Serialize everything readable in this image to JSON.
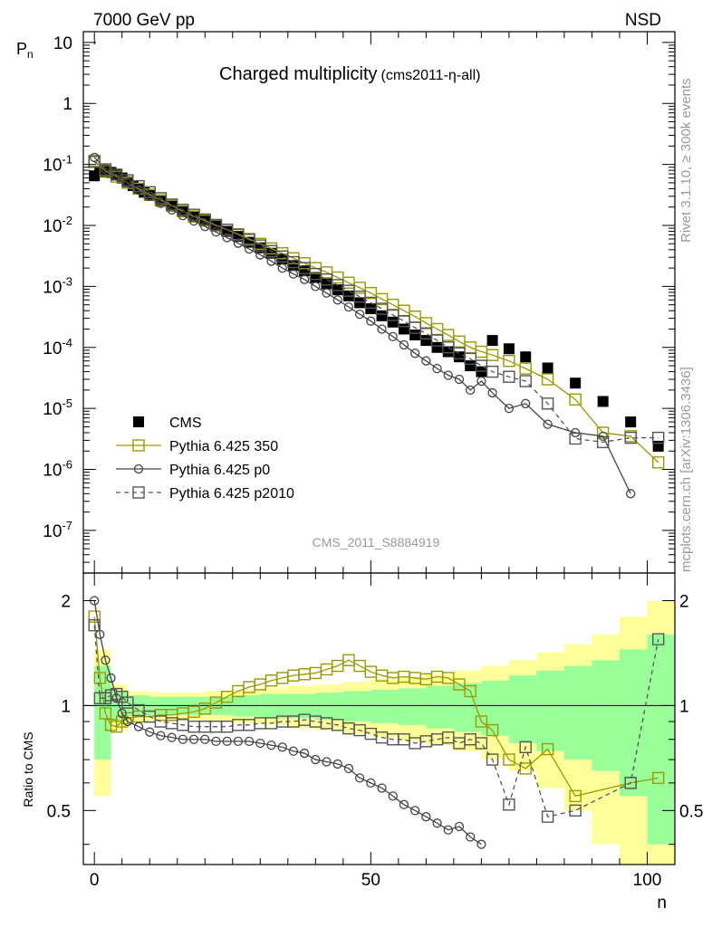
{
  "header": {
    "beam": "7000 GeV pp",
    "process": "NSD",
    "title_main": "Charged multiplicity",
    "title_sub": "(cms2011-η-all)",
    "side_rivet": "Rivet 3.1.10, ≥ 300k events",
    "side_mcplots": "mcplots.cern.ch [arXiv:1306.3436]",
    "analysis_id": "CMS_2011_S8884919"
  },
  "chart_data": [
    {
      "type": "scatter",
      "title": "Charged multiplicity",
      "xlabel": "n",
      "ylabel": "P_n",
      "y_scale": "log",
      "xlim": [
        -2,
        105
      ],
      "ylim": [
        2e-08,
        15
      ],
      "x_ticks": [
        "0",
        "50",
        "100"
      ],
      "y_ticks": [
        "10^-7",
        "10^-6",
        "10^-5",
        "10^-4",
        "10^-3",
        "10^-2",
        "10^-1",
        "1",
        "10"
      ],
      "legend_position": "lower-left",
      "series": [
        {
          "name": "CMS",
          "color": "#000000",
          "marker": "filled-square",
          "x": [
            0,
            1,
            2,
            3,
            4,
            5,
            6,
            7,
            8,
            9,
            10,
            12,
            14,
            16,
            18,
            20,
            22,
            24,
            26,
            28,
            30,
            32,
            34,
            36,
            38,
            40,
            42,
            44,
            46,
            48,
            50,
            52,
            54,
            56,
            58,
            60,
            62,
            64,
            66,
            68,
            70,
            72,
            75,
            78,
            82,
            87,
            92,
            97,
            102
          ],
          "y": [
            0.065,
            0.075,
            0.08,
            0.074,
            0.067,
            0.06,
            0.052,
            0.045,
            0.04,
            0.035,
            0.031,
            0.025,
            0.021,
            0.017,
            0.014,
            0.012,
            0.0098,
            0.008,
            0.0066,
            0.0053,
            0.0043,
            0.0035,
            0.0028,
            0.0022,
            0.0018,
            0.0014,
            0.0011,
            0.00088,
            0.0007,
            0.00054,
            0.00043,
            0.00033,
            0.00026,
            0.0002,
            0.00016,
            0.00013,
            0.0001,
            8.5e-05,
            7e-05,
            5e-05,
            4e-05,
            0.00013,
            9.5e-05,
            7e-05,
            4.6e-05,
            2.6e-05,
            1.3e-05,
            6e-06,
            2.4e-06
          ]
        },
        {
          "name": "Pythia 6.425 350",
          "color": "#999900",
          "marker": "open-square",
          "line": "solid",
          "x": [
            0,
            2,
            4,
            6,
            8,
            10,
            12,
            14,
            16,
            18,
            20,
            22,
            24,
            26,
            28,
            30,
            32,
            34,
            36,
            38,
            40,
            42,
            44,
            46,
            48,
            50,
            52,
            54,
            56,
            58,
            60,
            62,
            64,
            66,
            68,
            70,
            72,
            75,
            78,
            82,
            87,
            92,
            97,
            102
          ],
          "y": [
            0.115,
            0.078,
            0.063,
            0.05,
            0.04,
            0.032,
            0.026,
            0.021,
            0.017,
            0.014,
            0.012,
            0.01,
            0.0085,
            0.0072,
            0.006,
            0.005,
            0.0042,
            0.0035,
            0.0029,
            0.0024,
            0.002,
            0.0017,
            0.0014,
            0.00115,
            0.00095,
            0.00078,
            0.00062,
            0.0005,
            0.0004,
            0.00032,
            0.00025,
            0.0002,
            0.00016,
            0.000125,
            0.0001,
            8.5e-05,
            7.5e-05,
            6e-05,
            4.5e-05,
            3e-05,
            1.4e-05,
            4e-06,
            3.5e-06,
            1.3e-06
          ]
        },
        {
          "name": "Pythia 6.425 p0",
          "color": "#444444",
          "marker": "open-circle",
          "line": "solid",
          "x": [
            0,
            2,
            4,
            6,
            8,
            10,
            12,
            14,
            16,
            18,
            20,
            22,
            24,
            26,
            28,
            30,
            32,
            34,
            36,
            38,
            40,
            42,
            44,
            46,
            48,
            50,
            52,
            54,
            56,
            58,
            60,
            62,
            64,
            66,
            68,
            70,
            72,
            75,
            78,
            82,
            87,
            92,
            97
          ],
          "y": [
            0.13,
            0.085,
            0.065,
            0.05,
            0.038,
            0.03,
            0.023,
            0.018,
            0.0145,
            0.0118,
            0.0096,
            0.0078,
            0.0063,
            0.0051,
            0.0041,
            0.0033,
            0.0026,
            0.002,
            0.0016,
            0.0013,
            0.001,
            0.00078,
            0.0006,
            0.00046,
            0.00035,
            0.00027,
            0.0002,
            0.00015,
            0.00011,
            8e-05,
            6e-05,
            4.5e-05,
            3.5e-05,
            3e-05,
            2e-05,
            2.8e-05,
            1.8e-05,
            1e-05,
            1.2e-05,
            5.5e-06,
            4e-06,
            3.5e-06,
            4e-07
          ]
        },
        {
          "name": "Pythia 6.425 p2010",
          "color": "#555555",
          "marker": "open-square",
          "line": "dashed",
          "x": [
            0,
            2,
            4,
            6,
            8,
            10,
            12,
            14,
            16,
            18,
            20,
            22,
            24,
            26,
            28,
            30,
            32,
            34,
            36,
            38,
            40,
            42,
            44,
            46,
            48,
            50,
            52,
            54,
            56,
            58,
            60,
            62,
            64,
            66,
            68,
            70,
            72,
            75,
            78,
            82,
            87,
            92,
            97,
            102
          ],
          "y": [
            0.11,
            0.083,
            0.068,
            0.055,
            0.044,
            0.035,
            0.028,
            0.022,
            0.018,
            0.015,
            0.0125,
            0.0102,
            0.0085,
            0.007,
            0.0058,
            0.0047,
            0.0038,
            0.0031,
            0.0025,
            0.002,
            0.0016,
            0.0013,
            0.00105,
            0.00085,
            0.00068,
            0.00054,
            0.00043,
            0.00034,
            0.00027,
            0.00021,
            0.00017,
            0.00013,
            0.0001,
            8e-05,
            6.5e-05,
            5e-05,
            4e-05,
            3.3e-05,
            2.8e-05,
            1.2e-05,
            3.2e-06,
            2.8e-06,
            3.3e-06,
            3.3e-06
          ]
        }
      ]
    },
    {
      "type": "scatter",
      "ylabel": "Ratio to CMS",
      "xlabel": "n",
      "y_scale": "log",
      "xlim": [
        -2,
        105
      ],
      "ylim": [
        0.35,
        2.4
      ],
      "reference_line": 1,
      "x_ticks": [
        "0",
        "50",
        "100"
      ],
      "y_ticks": [
        "0.5",
        "1",
        "2"
      ],
      "uncertainty_bands": {
        "inner_color": "#99ff99",
        "outer_color": "#ffff99",
        "x_edges": [
          0,
          3,
          6,
          10,
          15,
          20,
          25,
          30,
          35,
          40,
          45,
          50,
          55,
          60,
          65,
          70,
          75,
          80,
          85,
          90,
          95,
          100,
          105
        ],
        "inner_half_width": [
          0.3,
          0.1,
          0.07,
          0.06,
          0.06,
          0.06,
          0.07,
          0.08,
          0.08,
          0.09,
          0.1,
          0.11,
          0.12,
          0.14,
          0.16,
          0.18,
          0.22,
          0.26,
          0.3,
          0.35,
          0.45,
          0.6
        ],
        "outer_half_width": [
          0.45,
          0.15,
          0.1,
          0.09,
          0.09,
          0.1,
          0.11,
          0.12,
          0.14,
          0.15,
          0.17,
          0.19,
          0.21,
          0.23,
          0.26,
          0.3,
          0.35,
          0.42,
          0.5,
          0.6,
          0.8,
          1.0
        ]
      },
      "series": [
        {
          "name": "Pythia 6.425 350",
          "color": "#999900",
          "marker": "open-square",
          "line": "solid",
          "x": [
            0,
            1,
            2,
            3,
            4,
            5,
            6,
            8,
            10,
            12,
            14,
            16,
            18,
            20,
            22,
            24,
            26,
            28,
            30,
            32,
            34,
            36,
            38,
            40,
            42,
            44,
            46,
            48,
            50,
            52,
            54,
            56,
            58,
            60,
            62,
            64,
            66,
            68,
            70,
            72,
            75,
            78,
            82,
            87,
            97,
            102
          ],
          "y": [
            1.8,
            1.2,
            0.95,
            0.88,
            0.87,
            0.9,
            0.92,
            0.93,
            0.93,
            0.94,
            0.94,
            0.95,
            0.96,
            0.98,
            1.02,
            1.06,
            1.1,
            1.13,
            1.15,
            1.18,
            1.2,
            1.22,
            1.23,
            1.24,
            1.27,
            1.3,
            1.35,
            1.3,
            1.25,
            1.22,
            1.2,
            1.21,
            1.2,
            1.19,
            1.21,
            1.2,
            1.15,
            1.1,
            0.9,
            0.85,
            0.7,
            0.66,
            0.75,
            0.55,
            0.6,
            0.62
          ]
        },
        {
          "name": "Pythia 6.425 p0",
          "color": "#444444",
          "marker": "open-circle",
          "line": "solid",
          "x": [
            0,
            1,
            2,
            3,
            4,
            5,
            6,
            8,
            10,
            12,
            14,
            16,
            18,
            20,
            22,
            24,
            26,
            28,
            30,
            32,
            34,
            36,
            38,
            40,
            42,
            44,
            46,
            48,
            50,
            52,
            54,
            56,
            58,
            60,
            62,
            64,
            66,
            68,
            70
          ],
          "y": [
            2.0,
            1.6,
            1.35,
            1.2,
            1.05,
            0.95,
            0.9,
            0.87,
            0.84,
            0.82,
            0.81,
            0.8,
            0.8,
            0.8,
            0.79,
            0.79,
            0.79,
            0.79,
            0.78,
            0.77,
            0.76,
            0.74,
            0.73,
            0.7,
            0.69,
            0.68,
            0.66,
            0.62,
            0.6,
            0.58,
            0.55,
            0.52,
            0.5,
            0.48,
            0.46,
            0.44,
            0.45,
            0.42,
            0.4
          ]
        },
        {
          "name": "Pythia 6.425 p2010",
          "color": "#555555",
          "marker": "open-square",
          "line": "dashed",
          "x": [
            0,
            1,
            2,
            3,
            4,
            5,
            6,
            8,
            10,
            12,
            14,
            16,
            18,
            20,
            22,
            24,
            26,
            28,
            30,
            32,
            34,
            36,
            38,
            40,
            42,
            44,
            46,
            48,
            50,
            52,
            54,
            56,
            58,
            60,
            62,
            64,
            66,
            68,
            70,
            72,
            75,
            78,
            82,
            87,
            97,
            102
          ],
          "y": [
            1.7,
            1.05,
            1.05,
            1.07,
            1.08,
            1.06,
            1.02,
            0.97,
            0.93,
            0.9,
            0.89,
            0.88,
            0.87,
            0.87,
            0.87,
            0.87,
            0.88,
            0.88,
            0.89,
            0.89,
            0.9,
            0.9,
            0.91,
            0.9,
            0.89,
            0.88,
            0.86,
            0.85,
            0.83,
            0.81,
            0.8,
            0.8,
            0.78,
            0.79,
            0.8,
            0.81,
            0.78,
            0.8,
            0.78,
            0.7,
            0.52,
            0.76,
            0.48,
            0.5,
            0.6,
            1.55
          ]
        }
      ]
    }
  ]
}
